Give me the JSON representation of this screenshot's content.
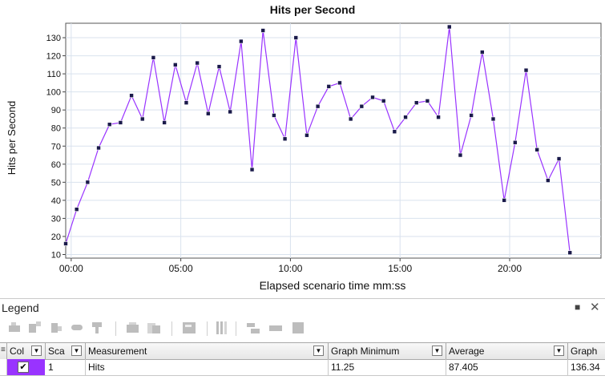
{
  "chart_data": {
    "type": "line",
    "title": "Hits per Second",
    "xlabel": "Elapsed scenario time mm:ss",
    "ylabel": "Hits per Second",
    "x_unit": "seconds",
    "x_ticks": [
      {
        "value": 0,
        "label": "00:00"
      },
      {
        "value": 300,
        "label": "05:00"
      },
      {
        "value": 600,
        "label": "10:00"
      },
      {
        "value": 900,
        "label": "15:00"
      },
      {
        "value": 1200,
        "label": "20:00"
      }
    ],
    "y_ticks": [
      10,
      20,
      30,
      40,
      50,
      60,
      70,
      80,
      90,
      100,
      110,
      120,
      130
    ],
    "xlim": [
      -15,
      1450
    ],
    "ylim": [
      8,
      138
    ],
    "grid": true,
    "series": [
      {
        "name": "Hits",
        "color": "#9933ff",
        "points": [
          [
            -15,
            16
          ],
          [
            15,
            35
          ],
          [
            45,
            50
          ],
          [
            75,
            69
          ],
          [
            105,
            82
          ],
          [
            135,
            83
          ],
          [
            165,
            98
          ],
          [
            195,
            85
          ],
          [
            225,
            119
          ],
          [
            255,
            83
          ],
          [
            285,
            115
          ],
          [
            315,
            94
          ],
          [
            345,
            116
          ],
          [
            375,
            88
          ],
          [
            405,
            114
          ],
          [
            435,
            89
          ],
          [
            465,
            128
          ],
          [
            495,
            57
          ],
          [
            525,
            134
          ],
          [
            555,
            87
          ],
          [
            585,
            74
          ],
          [
            615,
            130
          ],
          [
            645,
            76
          ],
          [
            675,
            92
          ],
          [
            705,
            103
          ],
          [
            735,
            105
          ],
          [
            765,
            85
          ],
          [
            795,
            92
          ],
          [
            825,
            97
          ],
          [
            855,
            95
          ],
          [
            885,
            78
          ],
          [
            915,
            86
          ],
          [
            945,
            94
          ],
          [
            975,
            95
          ],
          [
            1005,
            86
          ],
          [
            1035,
            136
          ],
          [
            1065,
            65
          ],
          [
            1095,
            87
          ],
          [
            1125,
            122
          ],
          [
            1155,
            85
          ],
          [
            1185,
            40
          ],
          [
            1215,
            72
          ],
          [
            1245,
            112
          ],
          [
            1275,
            68
          ],
          [
            1305,
            51
          ],
          [
            1335,
            63
          ],
          [
            1365,
            11
          ]
        ]
      }
    ]
  },
  "legend": {
    "title": "Legend",
    "pin_icon": "pin-icon",
    "close_icon": "close-icon",
    "toolbar_icons": [
      "configure-measurements-icon",
      "show-only-selected-icon",
      "hide-selected-icon",
      "show-all-icon",
      "filter-icon",
      "animate-icon",
      "show-hide-icon",
      "graph-settings-icon",
      "merge-icon",
      "columns-icon",
      "expand-icon",
      "collapse-icon",
      "export-icon"
    ],
    "columns": {
      "col": "Col",
      "scale": "Sca",
      "measurement": "Measurement",
      "graph_min": "Graph Minimum",
      "average": "Average",
      "graph_max": "Graph"
    },
    "rows": [
      {
        "color": "#9933ff",
        "checked": "✔",
        "scale": "1",
        "measurement": "Hits",
        "graph_min": "11.25",
        "average": "87.405",
        "graph_max": "136.34"
      }
    ]
  }
}
